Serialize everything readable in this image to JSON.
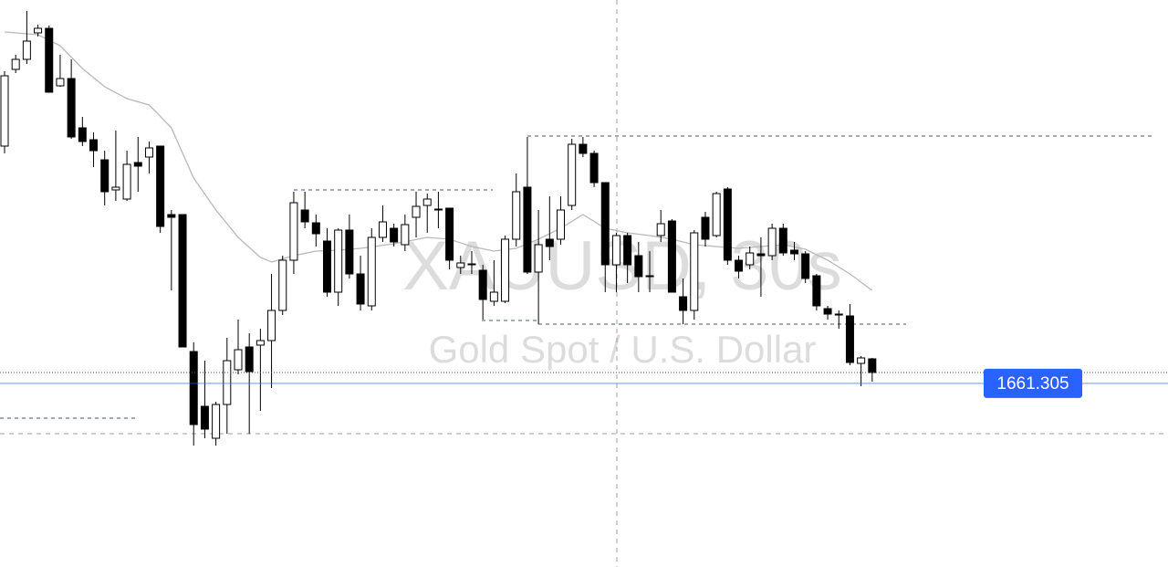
{
  "chart_data": {
    "type": "candlestick",
    "watermark": {
      "symbol": "XAUUSD, 30s",
      "description": "Gold Spot / U.S. Dollar"
    },
    "price_label": 1661.305,
    "ylim": [
      1653.26,
      1678.1
    ],
    "up_color": "#ffffff",
    "down_color": "#000000",
    "ma_color": "#b8b8b8",
    "price_color": "#2962ff",
    "open": [
      1671.7,
      1675.06,
      1675.5,
      1676.66,
      1676.86,
      1674.34,
      1674.66,
      1672.5,
      1671.98,
      1671.1,
      1669.78,
      1669.38,
      1670.98,
      1671.22,
      1671.7,
      1668.7,
      1668.7,
      1662.7,
      1660.3,
      1658.9,
      1660.38,
      1661.9,
      1662.9,
      1662.98,
      1663.18,
      1664.5,
      1666.7,
      1668.9,
      1668.34,
      1667.54,
      1665.3,
      1668.02,
      1666.1,
      1664.7,
      1667.7,
      1668.1,
      1667.38,
      1668.58,
      1669.1,
      1668.94,
      1668.98,
      1666.38,
      1666.54,
      1666.26,
      1664.9,
      1664.9,
      1667.62,
      1669.9,
      1666.18,
      1667.62,
      1667.62,
      1669.1,
      1671.78,
      1671.38,
      1670.1,
      1666.5,
      1667.78,
      1666.9,
      1666.02,
      1667.78,
      1668.42,
      1665.1,
      1664.5,
      1668.58,
      1667.78,
      1669.82,
      1666.7,
      1666.5,
      1666.98,
      1666.9,
      1668.1,
      1667.14,
      1666.98,
      1666.02,
      1664.58,
      1664.34,
      1664.26,
      1662.18,
      1662.38
    ],
    "high": [
      1674.98,
      1675.7,
      1677.62,
      1677.02,
      1676.98,
      1675.7,
      1675.5,
      1672.98,
      1672.3,
      1671.5,
      1672.38,
      1671.5,
      1672.1,
      1671.9,
      1671.7,
      1668.9,
      1668.7,
      1663.1,
      1662.3,
      1660.5,
      1663.3,
      1664.1,
      1663.5,
      1663.7,
      1666.1,
      1666.9,
      1669.7,
      1669.7,
      1668.7,
      1668.1,
      1668.1,
      1668.7,
      1666.9,
      1668.1,
      1669.1,
      1668.3,
      1668.7,
      1669.7,
      1669.62,
      1669.7,
      1668.98,
      1666.9,
      1667.1,
      1666.5,
      1666.7,
      1667.78,
      1670.5,
      1672.1,
      1668.9,
      1669.5,
      1669.5,
      1672.02,
      1672.1,
      1671.5,
      1670.1,
      1667.9,
      1667.9,
      1667.5,
      1667.1,
      1668.9,
      1668.5,
      1665.9,
      1668.02,
      1668.82,
      1669.7,
      1669.9,
      1666.9,
      1667.3,
      1667.7,
      1668.3,
      1668.3,
      1667.5,
      1667.1,
      1666.1,
      1664.7,
      1664.5,
      1664.78,
      1662.5,
      1662.42
    ],
    "low": [
      1671.38,
      1674.9,
      1675.3,
      1676.5,
      1674.06,
      1674.3,
      1672.02,
      1671.7,
      1670.78,
      1669.1,
      1669.3,
      1669.3,
      1669.7,
      1670.5,
      1667.9,
      1665.38,
      1662.9,
      1658.58,
      1658.9,
      1658.58,
      1659.1,
      1661.7,
      1659.1,
      1660.1,
      1661.1,
      1664.3,
      1666.1,
      1668.1,
      1667.3,
      1665.1,
      1664.7,
      1665.9,
      1664.5,
      1664.5,
      1667.5,
      1667.3,
      1667.1,
      1667.7,
      1667.9,
      1668.1,
      1666.3,
      1666.1,
      1666.1,
      1664.1,
      1664.7,
      1664.82,
      1667.3,
      1666.1,
      1663.9,
      1666.7,
      1667.38,
      1668.9,
      1671.22,
      1669.9,
      1665.3,
      1665.3,
      1665.7,
      1665.3,
      1665.3,
      1667.5,
      1665.3,
      1663.9,
      1664.1,
      1667.3,
      1667.7,
      1666.5,
      1665.9,
      1666.3,
      1665.1,
      1666.7,
      1666.9,
      1666.7,
      1665.7,
      1664.5,
      1664.1,
      1663.7,
      1662.1,
      1661.18,
      1661.38
    ],
    "close": [
      1674.78,
      1675.5,
      1676.3,
      1676.86,
      1674.06,
      1674.66,
      1672.1,
      1671.9,
      1671.5,
      1669.7,
      1669.9,
      1670.9,
      1670.82,
      1671.62,
      1668.18,
      1668.58,
      1662.9,
      1659.5,
      1659.3,
      1660.38,
      1662.3,
      1662.78,
      1661.82,
      1663.18,
      1664.5,
      1666.7,
      1669.22,
      1668.38,
      1667.86,
      1665.3,
      1668.02,
      1666.1,
      1664.78,
      1667.7,
      1668.38,
      1667.5,
      1668.26,
      1669.06,
      1669.38,
      1668.9,
      1666.7,
      1666.58,
      1666.5,
      1664.98,
      1665.3,
      1667.62,
      1669.7,
      1666.18,
      1667.38,
      1667.3,
      1668.9,
      1671.78,
      1671.38,
      1670.1,
      1666.5,
      1667.78,
      1666.5,
      1665.98,
      1665.98,
      1668.3,
      1665.3,
      1664.5,
      1667.9,
      1667.62,
      1669.62,
      1666.7,
      1666.22,
      1667.02,
      1666.9,
      1668.1,
      1667.02,
      1666.98,
      1665.9,
      1664.7,
      1664.34,
      1664.3,
      1662.22,
      1662.42,
      1661.78
    ],
    "ma": {
      "x": [
        0,
        3,
        5,
        7,
        9,
        11,
        13,
        15,
        17,
        19,
        21,
        23,
        24,
        26,
        28,
        30,
        32,
        35,
        38,
        40,
        42,
        44,
        46,
        48,
        50,
        52,
        54,
        56,
        58,
        60,
        62,
        64,
        66,
        68,
        70,
        72,
        74,
        76,
        78
      ],
      "values": [
        1676.7,
        1676.58,
        1676.1,
        1675.1,
        1674.3,
        1673.78,
        1673.5,
        1672.5,
        1670.3,
        1668.9,
        1667.7,
        1666.82,
        1666.62,
        1666.9,
        1667.1,
        1667.14,
        1667.22,
        1667.42,
        1667.7,
        1667.62,
        1667.3,
        1667.1,
        1667.22,
        1667.62,
        1668.1,
        1668.7,
        1668.1,
        1667.9,
        1667.78,
        1667.62,
        1667.38,
        1667.3,
        1667.22,
        1667.3,
        1667.38,
        1667.18,
        1666.7,
        1666.1,
        1665.38
      ]
    }
  }
}
